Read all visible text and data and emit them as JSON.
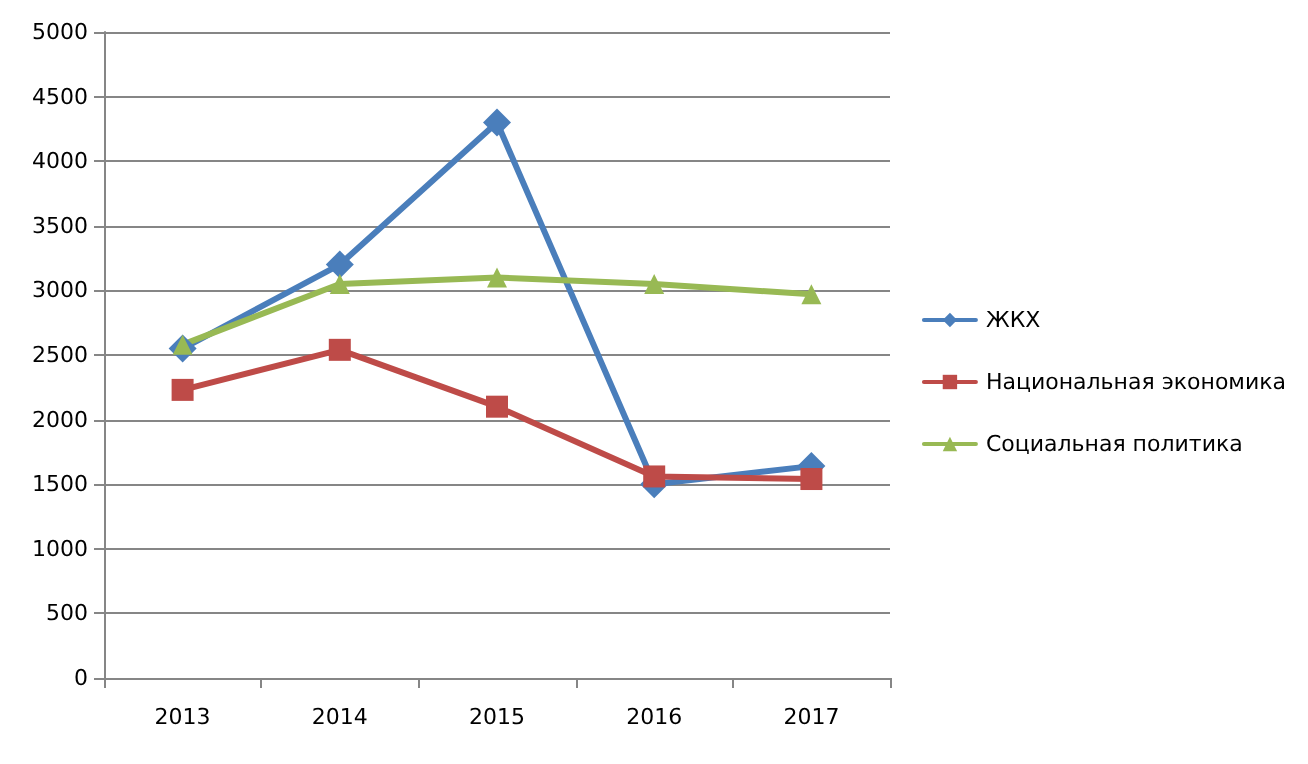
{
  "chart_data": {
    "type": "line",
    "categories": [
      "2013",
      "2014",
      "2015",
      "2016",
      "2017"
    ],
    "series": [
      {
        "name": "ЖКХ",
        "color": "#4a7ebb",
        "marker": "diamond",
        "values": [
          2550,
          3200,
          4300,
          1500,
          1640
        ]
      },
      {
        "name": "Национальная экономика",
        "color": "#be4b48",
        "marker": "square",
        "values": [
          2230,
          2540,
          2100,
          1560,
          1540
        ]
      },
      {
        "name": "Социальная политика",
        "color": "#98b954",
        "marker": "triangle",
        "values": [
          2580,
          3050,
          3100,
          3050,
          2970
        ]
      }
    ],
    "ylim": [
      0,
      5000
    ],
    "yticks": [
      0,
      500,
      1000,
      1500,
      2000,
      2500,
      3000,
      3500,
      4000,
      4500,
      5000
    ],
    "grid": "y",
    "legend": "right",
    "line_style": "solid"
  }
}
